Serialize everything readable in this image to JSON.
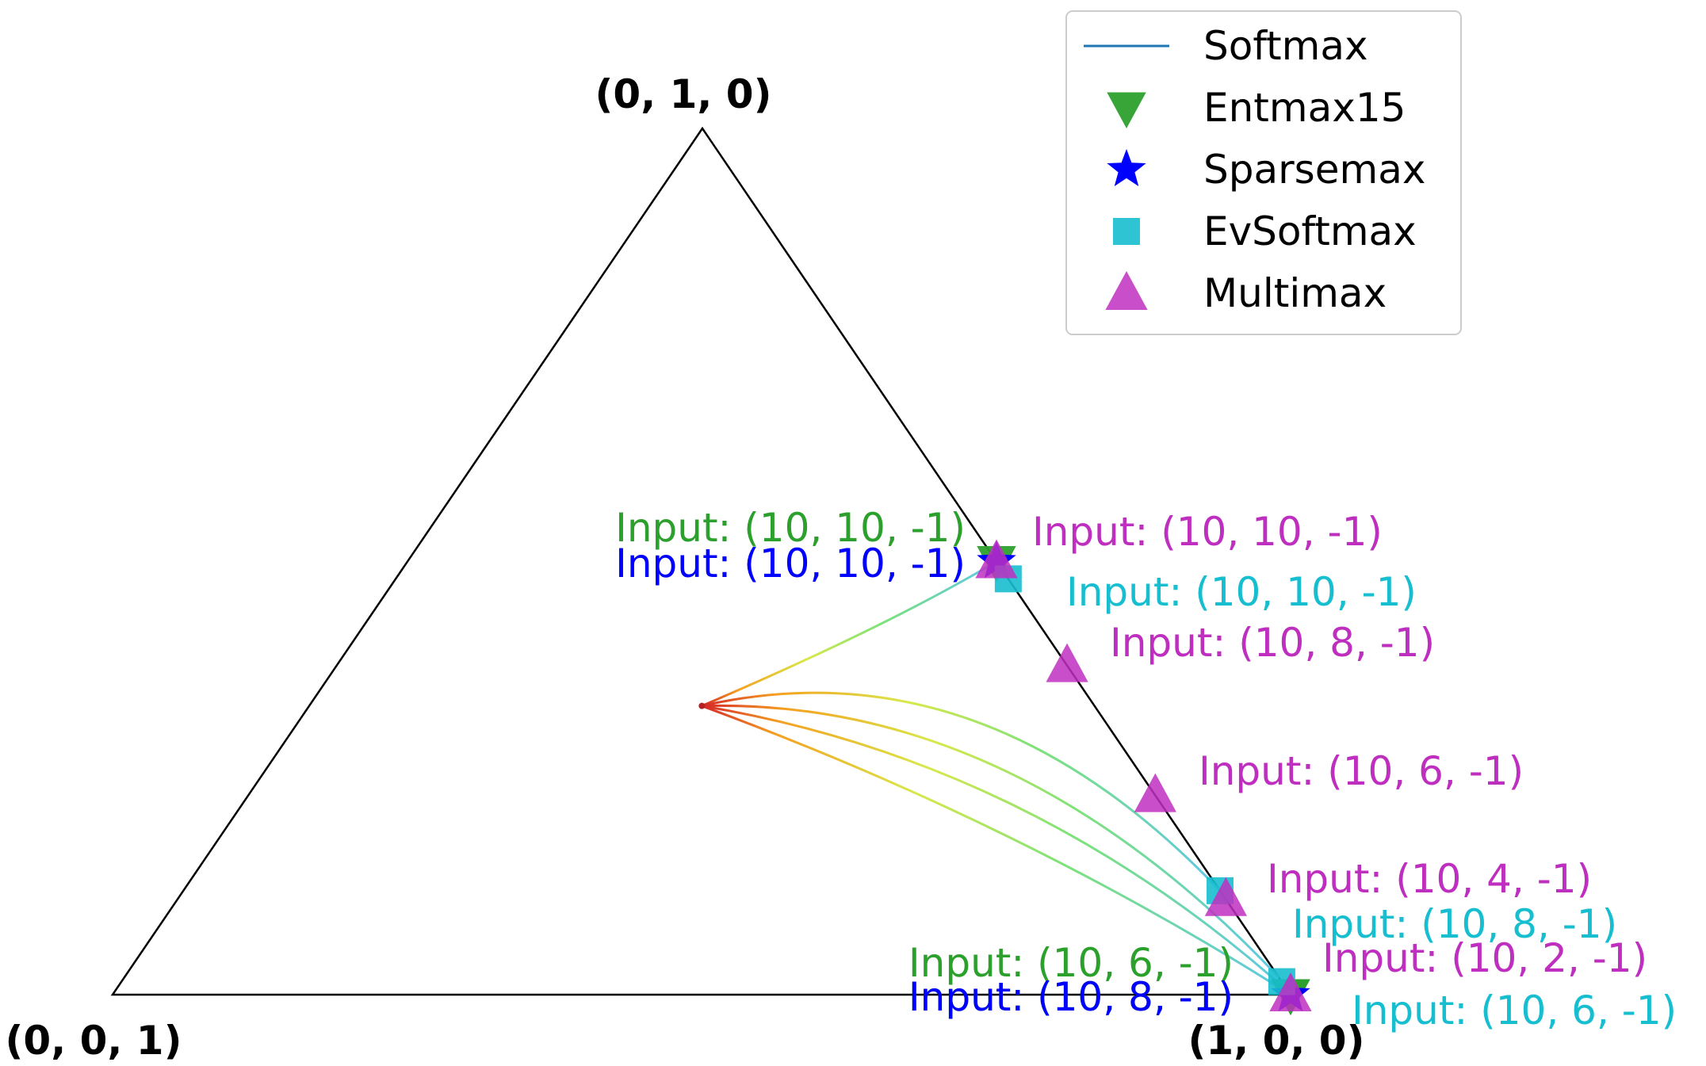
{
  "colors": {
    "softmax": "#1f77b4",
    "entmax15": "#2ca02c",
    "sparsemax": "#0000ff",
    "evsoftmax": "#17becf",
    "multimax": "#bf2fbf",
    "simplex_edge": "#000000"
  },
  "chart_data": {
    "type": "scatter",
    "title": "",
    "coordinate_system": "probability simplex (ternary)",
    "vertex_labels": {
      "top": "(0, 1, 0)",
      "bottom_left": "(0, 0, 1)",
      "bottom_right": "(1, 0, 0)"
    },
    "legend": {
      "position": "top-right",
      "entries": [
        {
          "label": "Softmax",
          "marker": "line"
        },
        {
          "label": "Entmax15",
          "marker": "triangle-down"
        },
        {
          "label": "Sparsemax",
          "marker": "star"
        },
        {
          "label": "EvSoftmax",
          "marker": "square"
        },
        {
          "label": "Multimax",
          "marker": "triangle-up"
        }
      ]
    },
    "softmax_paths": {
      "description": "temperature paths from uniform point to final distribution",
      "start": [
        0.333,
        0.333,
        0.333
      ],
      "ends": [
        [
          0.5,
          0.5,
          0.0
        ],
        [
          0.88,
          0.12,
          0.0
        ],
        [
          0.98,
          0.02,
          0.0
        ],
        [
          0.997,
          0.003,
          0.0
        ],
        [
          1.0,
          0.0,
          0.0
        ]
      ],
      "colormap": "temperature: red (high) → yellow → green → cyan (low)"
    },
    "series": [
      {
        "name": "Entmax15",
        "points": [
          [
            0.5,
            0.5,
            0.0
          ],
          [
            1.0,
            0.0,
            0.0
          ],
          [
            1.0,
            0.0,
            0.0
          ]
        ]
      },
      {
        "name": "Sparsemax",
        "points": [
          [
            0.5,
            0.5,
            0.0
          ],
          [
            1.0,
            0.0,
            0.0
          ]
        ]
      },
      {
        "name": "EvSoftmax",
        "points": [
          [
            0.52,
            0.48,
            0.0
          ],
          [
            0.88,
            0.12,
            0.0
          ],
          [
            0.985,
            0.015,
            0.0
          ]
        ]
      },
      {
        "name": "Multimax",
        "points": [
          [
            0.5,
            0.5,
            0.0
          ],
          [
            0.62,
            0.38,
            0.0
          ],
          [
            0.77,
            0.23,
            0.0
          ],
          [
            0.89,
            0.11,
            0.0
          ],
          [
            1.0,
            0.0,
            0.0
          ]
        ]
      }
    ],
    "annotations": [
      {
        "text": "Input: (10, 10, -1)",
        "series": "Entmax15"
      },
      {
        "text": "Input: (10, 10, -1)",
        "series": "Sparsemax"
      },
      {
        "text": "Input: (10, 10, -1)",
        "series": "Multimax"
      },
      {
        "text": "Input: (10, 10, -1)",
        "series": "EvSoftmax"
      },
      {
        "text": "Input: (10, 8, -1)",
        "series": "Multimax"
      },
      {
        "text": "Input: (10, 6, -1)",
        "series": "Multimax"
      },
      {
        "text": "Input: (10, 4, -1)",
        "series": "Multimax"
      },
      {
        "text": "Input: (10, 8, -1)",
        "series": "EvSoftmax"
      },
      {
        "text": "Input: (10, 2, -1)",
        "series": "Multimax"
      },
      {
        "text": "Input: (10, 6, -1)",
        "series": "Entmax15"
      },
      {
        "text": "Input: (10, 8, -1)",
        "series": "Entmax15"
      },
      {
        "text": "Input: (10, 8, -1)",
        "series": "Sparsemax"
      },
      {
        "text": "Input: (10, 6, -1)",
        "series": "EvSoftmax"
      }
    ]
  }
}
